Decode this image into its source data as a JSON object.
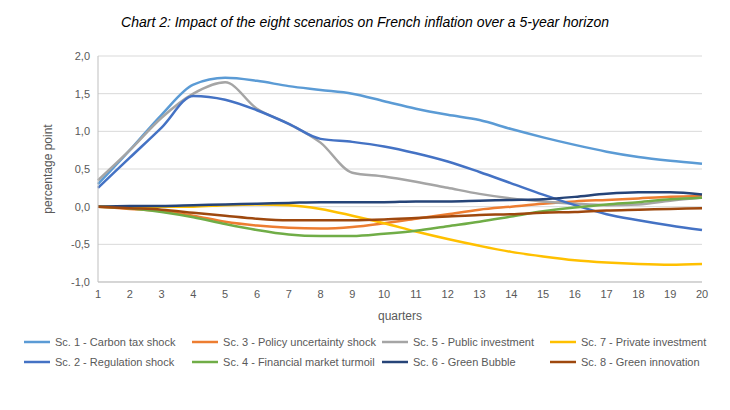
{
  "chart_data": {
    "type": "line",
    "title": "Chart 2: Impact of the eight scenarios on French inflation over a 5-year horizon",
    "x_label": "quarters",
    "y_label": "percentage point",
    "categories": [
      1,
      2,
      3,
      4,
      5,
      6,
      7,
      8,
      9,
      10,
      11,
      12,
      13,
      14,
      15,
      16,
      17,
      18,
      19,
      20
    ],
    "ylim": [
      -1,
      2
    ],
    "yticks": [
      {
        "value": -1,
        "label": "-1,0"
      },
      {
        "value": -0.5,
        "label": "-0,5"
      },
      {
        "value": 0,
        "label": "0,0"
      },
      {
        "value": 0.5,
        "label": "0,5"
      },
      {
        "value": 1,
        "label": "1,0"
      },
      {
        "value": 1.5,
        "label": "1,5"
      },
      {
        "value": 2,
        "label": "2,0"
      }
    ],
    "grid": true,
    "legend": "bottom",
    "series": [
      {
        "name": "Sc. 1 - Carbon tax shock",
        "color": "#5B9BD5",
        "values": [
          0.3,
          0.75,
          1.22,
          1.62,
          1.71,
          1.67,
          1.6,
          1.55,
          1.5,
          1.4,
          1.3,
          1.22,
          1.15,
          1.03,
          0.92,
          0.82,
          0.73,
          0.66,
          0.61,
          0.57
        ]
      },
      {
        "name": "Sc. 3 - Policy uncertainty shock",
        "color": "#ED7D31",
        "values": [
          0,
          -0.03,
          -0.06,
          -0.12,
          -0.2,
          -0.25,
          -0.28,
          -0.29,
          -0.27,
          -0.22,
          -0.16,
          -0.1,
          -0.04,
          0,
          0.04,
          0.07,
          0.09,
          0.11,
          0.13,
          0.14
        ]
      },
      {
        "name": "Sc. 5 - Public investment",
        "color": "#A5A5A5",
        "values": [
          0.35,
          0.75,
          1.18,
          1.5,
          1.65,
          1.3,
          1.1,
          0.85,
          0.45,
          0.4,
          0.33,
          0.25,
          0.17,
          0.11,
          0.07,
          0.04,
          0.02,
          0.03,
          0.08,
          0.12
        ]
      },
      {
        "name": "Sc. 7 - Private investment",
        "color": "#FFC000",
        "values": [
          0,
          0,
          0,
          0,
          0.02,
          0.03,
          0.02,
          -0.03,
          -0.12,
          -0.22,
          -0.33,
          -0.43,
          -0.52,
          -0.6,
          -0.66,
          -0.71,
          -0.74,
          -0.76,
          -0.77,
          -0.76
        ]
      },
      {
        "name": "Sc. 2 - Regulation shock",
        "color": "#4472C4",
        "values": [
          0.25,
          0.65,
          1.05,
          1.47,
          1.42,
          1.28,
          1.1,
          0.9,
          0.86,
          0.8,
          0.71,
          0.6,
          0.46,
          0.31,
          0.16,
          0.02,
          -0.1,
          -0.18,
          -0.25,
          -0.31
        ]
      },
      {
        "name": "Sc. 4 - Financial market turmoil",
        "color": "#70AD47",
        "values": [
          0,
          -0.02,
          -0.07,
          -0.14,
          -0.23,
          -0.31,
          -0.37,
          -0.39,
          -0.39,
          -0.36,
          -0.32,
          -0.26,
          -0.2,
          -0.13,
          -0.06,
          -0.01,
          0.03,
          0.06,
          0.1,
          0.12
        ]
      },
      {
        "name": "Sc. 6 - Green Bubble",
        "color": "#264478",
        "values": [
          0,
          0.01,
          0.01,
          0.02,
          0.03,
          0.04,
          0.05,
          0.06,
          0.06,
          0.06,
          0.07,
          0.07,
          0.08,
          0.09,
          0.1,
          0.13,
          0.17,
          0.19,
          0.19,
          0.16
        ]
      },
      {
        "name": "Sc. 8 - Green innovation",
        "color": "#9E480E",
        "values": [
          0,
          -0.02,
          -0.04,
          -0.08,
          -0.12,
          -0.16,
          -0.18,
          -0.18,
          -0.18,
          -0.17,
          -0.15,
          -0.13,
          -0.11,
          -0.1,
          -0.08,
          -0.07,
          -0.05,
          -0.04,
          -0.03,
          -0.02
        ]
      }
    ]
  }
}
